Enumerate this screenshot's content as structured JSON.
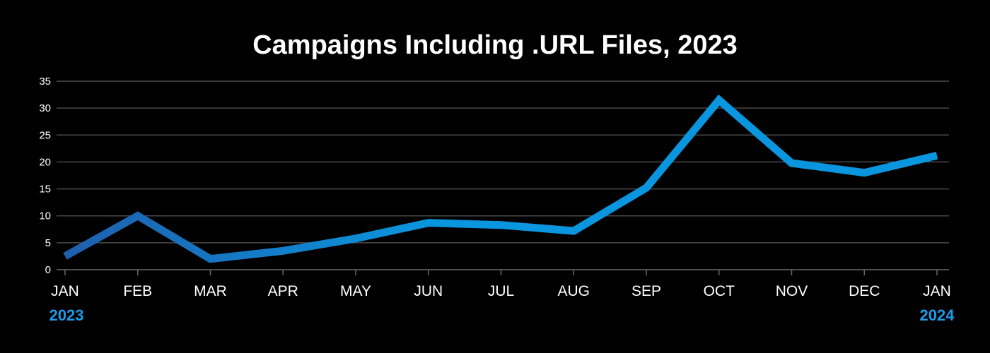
{
  "chart_data": {
    "type": "line",
    "title": "Campaigns Including .URL Files, 2023",
    "xlabel": "",
    "ylabel": "",
    "categories": [
      "JAN",
      "FEB",
      "MAR",
      "APR",
      "MAY",
      "JUN",
      "JUL",
      "AUG",
      "SEP",
      "OCT",
      "NOV",
      "DEC",
      "JAN"
    ],
    "year_labels": {
      "start": "2023",
      "end": "2024"
    },
    "series": [
      {
        "values": [
          2.5,
          10,
          2,
          3.5,
          5.8,
          8.7,
          8.3,
          7.2,
          15.2,
          31.5,
          19.8,
          18,
          21.2
        ]
      }
    ],
    "ylim": [
      0,
      35
    ],
    "yticks": [
      0,
      5,
      10,
      15,
      20,
      25,
      30,
      35
    ],
    "grid": true,
    "legend": "none"
  },
  "colors": {
    "background": "#000000",
    "text": "#ffffff",
    "grid": "#4a4a4a",
    "line_start": "#1f5fad",
    "line_end": "#0a96de",
    "year_label": "#1e9bea"
  }
}
